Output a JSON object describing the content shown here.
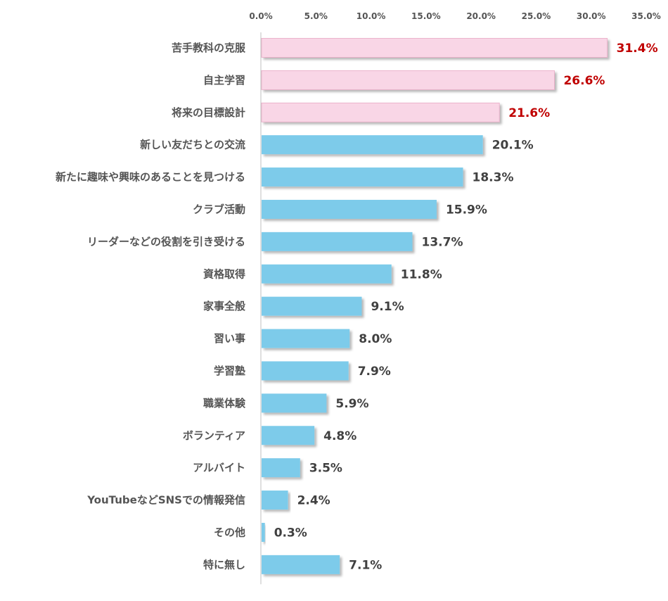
{
  "chart_data": {
    "type": "bar",
    "orientation": "horizontal",
    "xlim": [
      0,
      35
    ],
    "x_ticks": [
      "0.0%",
      "5.0%",
      "10.0%",
      "15.0%",
      "20.0%",
      "25.0%",
      "30.0%",
      "35.0%"
    ],
    "categories": [
      "苦手教科の克服",
      "自主学習",
      "将来の目標設計",
      "新しい友だちとの交流",
      "新たに趣味や興味のあることを見つける",
      "クラブ活動",
      "リーダーなどの役割を引き受ける",
      "資格取得",
      "家事全般",
      "習い事",
      "学習塾",
      "職業体験",
      "ボランティア",
      "アルバイト",
      "YouTubeなどSNSでの情報発信",
      "その他",
      "特に無し"
    ],
    "values": [
      31.4,
      26.6,
      21.6,
      20.1,
      18.3,
      15.9,
      13.7,
      11.8,
      9.1,
      8.0,
      7.9,
      5.9,
      4.8,
      3.5,
      2.4,
      0.3,
      7.1
    ],
    "value_labels": [
      "31.4%",
      "26.6%",
      "21.6%",
      "20.1%",
      "18.3%",
      "15.9%",
      "13.7%",
      "11.8%",
      "9.1%",
      "8.0%",
      "7.9%",
      "5.9%",
      "4.8%",
      "3.5%",
      "2.4%",
      "0.3%",
      "7.1%"
    ],
    "highlight_top_n": 3,
    "grid": false,
    "colors": {
      "bar_default": "#7dcbea",
      "bar_highlight": "#f9d6e6",
      "bar_highlight_border": "#e9a9c5",
      "label_highlight": "#c00000",
      "label_default": "#404040",
      "axis": "#bfbfbf"
    }
  }
}
